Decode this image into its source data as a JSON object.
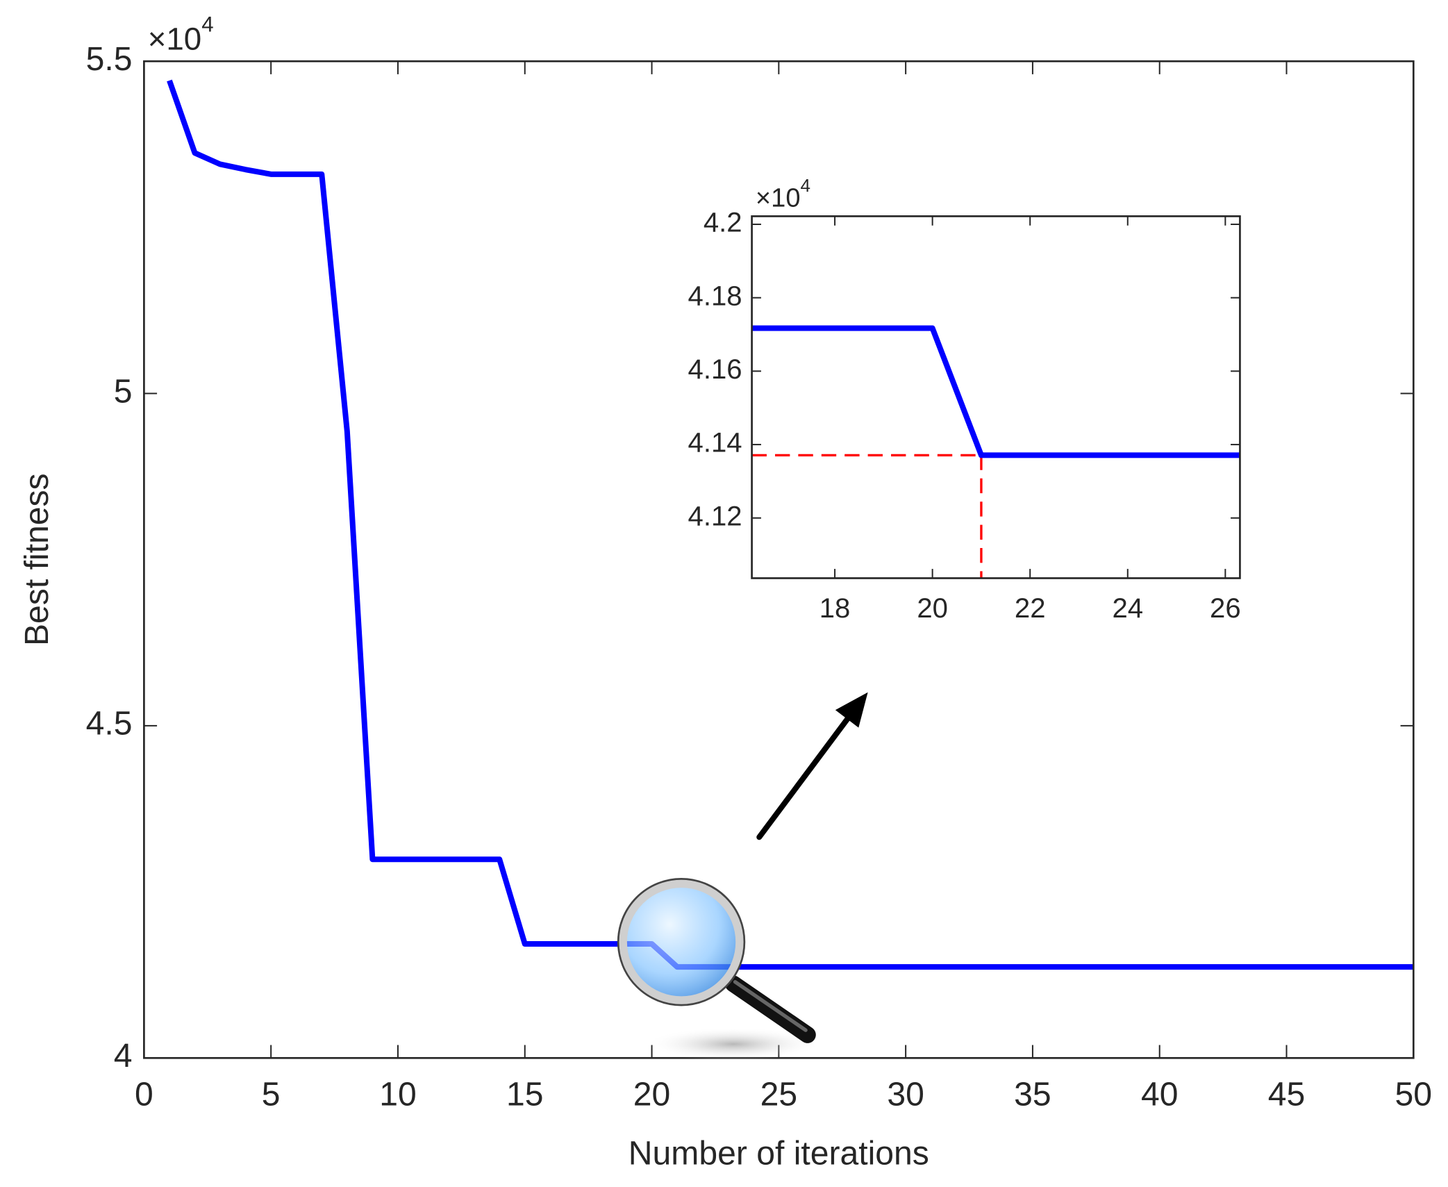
{
  "chart_data": [
    {
      "type": "line",
      "x_label": "Number of iterations",
      "y_label": "Best fitness",
      "y_multiplier": {
        "base": "×10",
        "exponent": "4"
      },
      "x": [
        1,
        2,
        3,
        4,
        5,
        6,
        7,
        8,
        9,
        10,
        11,
        12,
        13,
        14,
        15,
        16,
        17,
        18,
        19,
        20,
        21,
        22,
        23,
        24,
        25,
        26,
        27,
        28,
        29,
        30,
        31,
        32,
        33,
        34,
        35,
        36,
        37,
        38,
        39,
        40,
        41,
        42,
        43,
        44,
        45,
        46,
        47,
        48,
        49,
        50
      ],
      "series": [
        {
          "color": "#0000ff",
          "values": [
            5.471,
            5.362,
            5.345,
            5.337,
            5.33,
            5.33,
            5.33,
            4.943,
            4.299,
            4.299,
            4.299,
            4.299,
            4.299,
            4.299,
            4.1717,
            4.1717,
            4.1717,
            4.1717,
            4.1717,
            4.1717,
            4.1371,
            4.1371,
            4.1371,
            4.1371,
            4.1371,
            4.1371,
            4.1371,
            4.1371,
            4.1371,
            4.1371,
            4.1371,
            4.1371,
            4.1371,
            4.1371,
            4.1371,
            4.1371,
            4.1371,
            4.1371,
            4.1371,
            4.1371,
            4.1371,
            4.1371,
            4.1371,
            4.1371,
            4.1371,
            4.1371,
            4.1371,
            4.1371,
            4.1371,
            4.1371
          ]
        }
      ],
      "xlim": [
        0,
        50
      ],
      "xticks": [
        0,
        5,
        10,
        15,
        20,
        25,
        30,
        35,
        40,
        45,
        50
      ],
      "ylim": [
        4,
        5.5
      ],
      "yticks": [
        4,
        4.5,
        5,
        5.5
      ],
      "grid": false
    },
    {
      "type": "line",
      "y_multiplier": {
        "base": "×10",
        "exponent": "4"
      },
      "x": [
        16,
        17,
        18,
        19,
        20,
        21,
        22,
        23,
        24,
        25,
        26,
        27
      ],
      "series": [
        {
          "color": "#0000ff",
          "values": [
            4.1717,
            4.1717,
            4.1717,
            4.1717,
            4.1717,
            4.1371,
            4.1371,
            4.1371,
            4.1371,
            4.1371,
            4.1371,
            4.1371
          ]
        }
      ],
      "reference": {
        "x": 21,
        "y": 4.1371,
        "color": "#ff0000"
      },
      "xlim": [
        16.3,
        26.3
      ],
      "xticks": [
        18,
        20,
        22,
        24,
        26
      ],
      "ylim": [
        4.1036,
        4.2022
      ],
      "yticks": [
        4.12,
        4.14,
        4.16,
        4.18,
        4.2
      ],
      "grid": false
    }
  ]
}
